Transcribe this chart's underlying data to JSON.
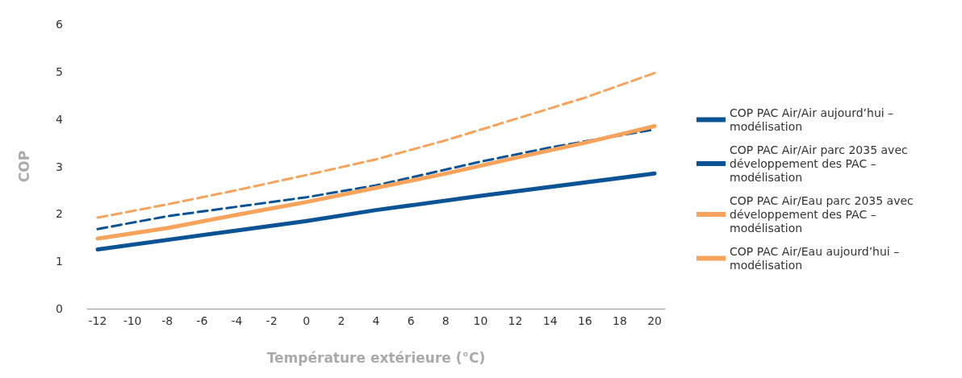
{
  "chart_data": {
    "type": "line",
    "xlabel": "Température extérieure (°C)",
    "ylabel": "COP",
    "xlim": [
      -12.6,
      20.6
    ],
    "xticks": [
      -12,
      -10,
      -8,
      -6,
      -4,
      -2,
      0,
      2,
      4,
      6,
      8,
      10,
      12,
      14,
      16,
      18,
      20
    ],
    "ylim": [
      0,
      6
    ],
    "yticks": [
      0,
      1,
      2,
      3,
      4,
      5,
      6
    ],
    "grid": false,
    "legend": "right",
    "marker": "none",
    "series": [
      {
        "name": "COP PAC Air/Air aujourd’hui – modélisation",
        "color": "#0b5394",
        "line_style": "solid",
        "x": [
          -12,
          -4,
          0,
          4,
          10,
          20
        ],
        "values": [
          1.25,
          1.65,
          1.85,
          2.08,
          2.38,
          2.85
        ]
      },
      {
        "name": "COP PAC Air/Air parc 2035 avec développement des PAC – modélisation",
        "color": "#0b5394",
        "line_style": "dashed",
        "x": [
          -12,
          -8,
          0,
          4,
          10,
          14,
          20
        ],
        "values": [
          1.68,
          1.95,
          2.35,
          2.6,
          3.1,
          3.4,
          3.78
        ]
      },
      {
        "name": "COP PAC Air/Eau parc 2035 avec développement des PAC – modélisation",
        "color": "#f7a35c",
        "line_style": "dashed",
        "x": [
          -12,
          -8,
          -4,
          0,
          4,
          8,
          12,
          16,
          20
        ],
        "values": [
          1.92,
          2.2,
          2.5,
          2.82,
          3.15,
          3.55,
          4.0,
          4.45,
          4.97
        ]
      },
      {
        "name": "COP PAC Air/Eau aujourd’hui – modélisation",
        "color": "#f7a35c",
        "line_style": "solid",
        "x": [
          -12,
          -8,
          -4,
          0,
          4,
          8,
          12,
          16,
          20
        ],
        "values": [
          1.48,
          1.7,
          1.98,
          2.25,
          2.55,
          2.85,
          3.18,
          3.5,
          3.85
        ]
      }
    ]
  }
}
